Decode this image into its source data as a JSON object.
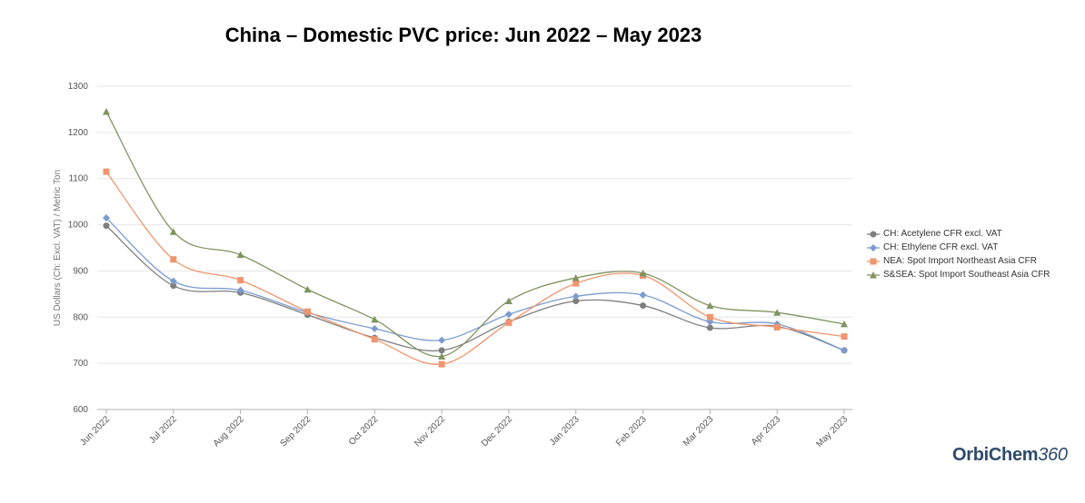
{
  "chart_data": {
    "type": "line",
    "title": "China – Domestic PVC price: Jun 2022 – May 2023",
    "ylabel": "US Dollars (Ch: Excl. VAT) / Metric Ton",
    "xlabel": "",
    "ylim": [
      600,
      1300
    ],
    "yticks": [
      600,
      700,
      800,
      900,
      1000,
      1100,
      1200,
      1300
    ],
    "grid": "horizontal",
    "legend_position": "right",
    "categories": [
      "Jun 2022",
      "Jul 2022",
      "Aug 2022",
      "Sep 2022",
      "Oct 2022",
      "Nov 2022",
      "Dec 2022",
      "Jan 2023",
      "Feb 2023",
      "Mar 2023",
      "Apr 2023",
      "May 2023"
    ],
    "series": [
      {
        "name": "CH: Acetylene CFR excl. VAT",
        "color": "#7f7f7f",
        "marker": "circle",
        "values": [
          998,
          868,
          853,
          805,
          755,
          728,
          790,
          835,
          825,
          777,
          780,
          728
        ]
      },
      {
        "name": "CH: Ethylene CFR excl. VAT",
        "color": "#7b9bd1",
        "marker": "diamond",
        "values": [
          1015,
          878,
          858,
          810,
          775,
          750,
          806,
          845,
          848,
          790,
          785,
          728
        ]
      },
      {
        "name": "NEA: Spot Import Northeast Asia CFR",
        "color": "#f0956e",
        "marker": "square",
        "values": [
          1115,
          925,
          880,
          812,
          752,
          698,
          788,
          873,
          890,
          800,
          778,
          758
        ]
      },
      {
        "name": "S&SEA: Spot Import Southeast Asia CFR",
        "color": "#7f9460",
        "marker": "triangle",
        "values": [
          1245,
          985,
          935,
          860,
          795,
          715,
          835,
          885,
          895,
          825,
          810,
          785
        ]
      }
    ]
  },
  "logo": {
    "text": "OrbiChem",
    "num": "360"
  }
}
